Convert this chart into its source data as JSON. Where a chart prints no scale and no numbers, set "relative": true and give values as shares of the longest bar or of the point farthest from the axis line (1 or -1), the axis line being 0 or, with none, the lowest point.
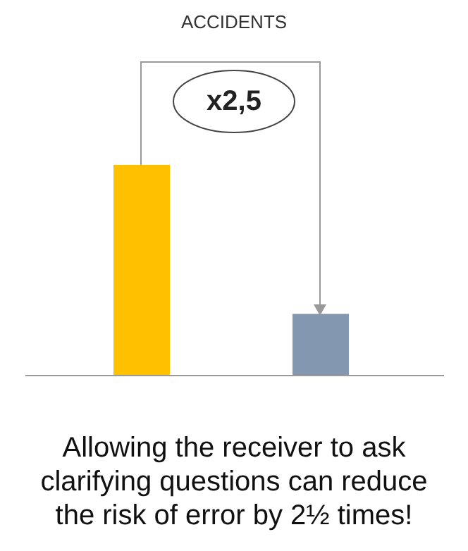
{
  "chart_data": {
    "type": "bar",
    "title": "ACCIDENTS",
    "relative": true,
    "categories": [
      null,
      null
    ],
    "values": [
      1,
      0.29
    ],
    "colors": [
      "#ffc000",
      "#8497b0"
    ],
    "legend": false,
    "annotations": [
      "x2,5",
      "Allowing the receiver to ask clarifying questions can reduce the risk of error by 2½ times!"
    ]
  }
}
